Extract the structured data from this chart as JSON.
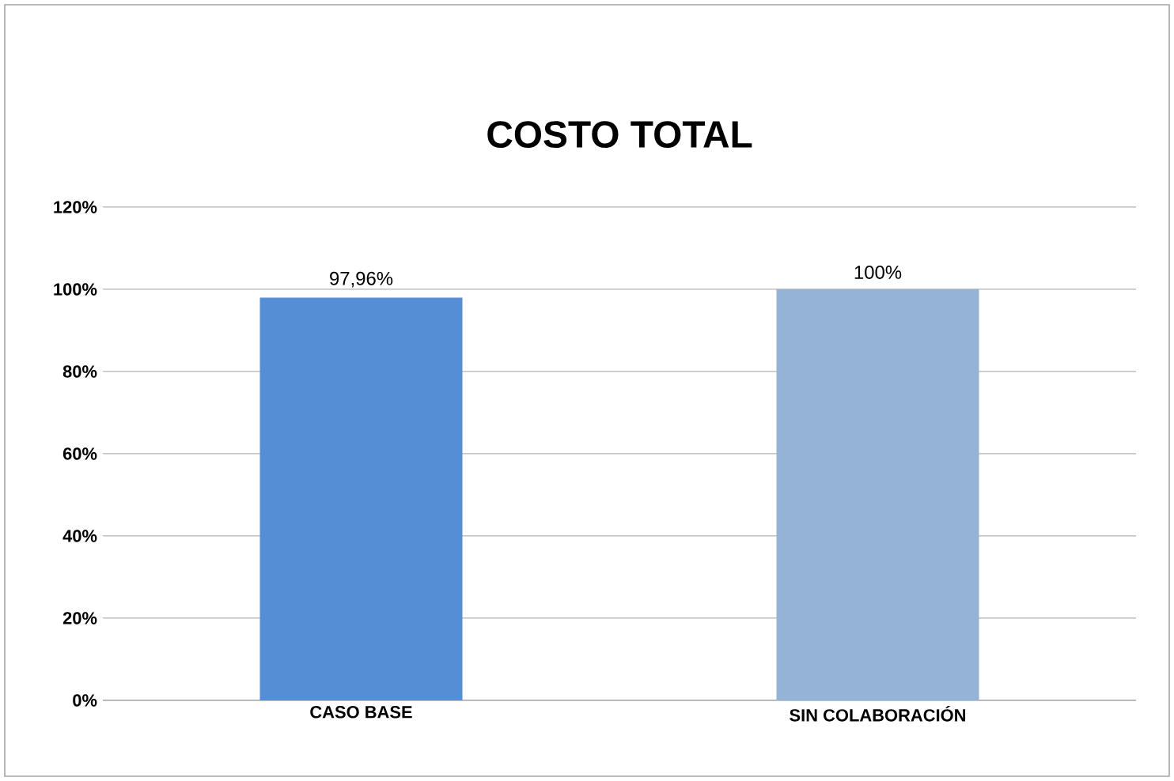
{
  "chart_data": {
    "type": "bar",
    "title": "COSTO TOTAL",
    "categories": [
      "CASO BASE",
      "SIN COLABORACIÓN"
    ],
    "values": [
      97.96,
      100
    ],
    "colors": [
      "#558ed5",
      "#95b3d7"
    ],
    "value_labels": [
      "97,96%",
      "100%"
    ],
    "ylim": [
      0,
      120
    ],
    "yticks": [
      {
        "value": 0,
        "label": "0%"
      },
      {
        "value": 20,
        "label": "20%"
      },
      {
        "value": 40,
        "label": "40%"
      },
      {
        "value": 60,
        "label": "60%"
      },
      {
        "value": 80,
        "label": "80%"
      },
      {
        "value": 100,
        "label": "100%"
      },
      {
        "value": 120,
        "label": "120%"
      }
    ],
    "grid": "y"
  }
}
